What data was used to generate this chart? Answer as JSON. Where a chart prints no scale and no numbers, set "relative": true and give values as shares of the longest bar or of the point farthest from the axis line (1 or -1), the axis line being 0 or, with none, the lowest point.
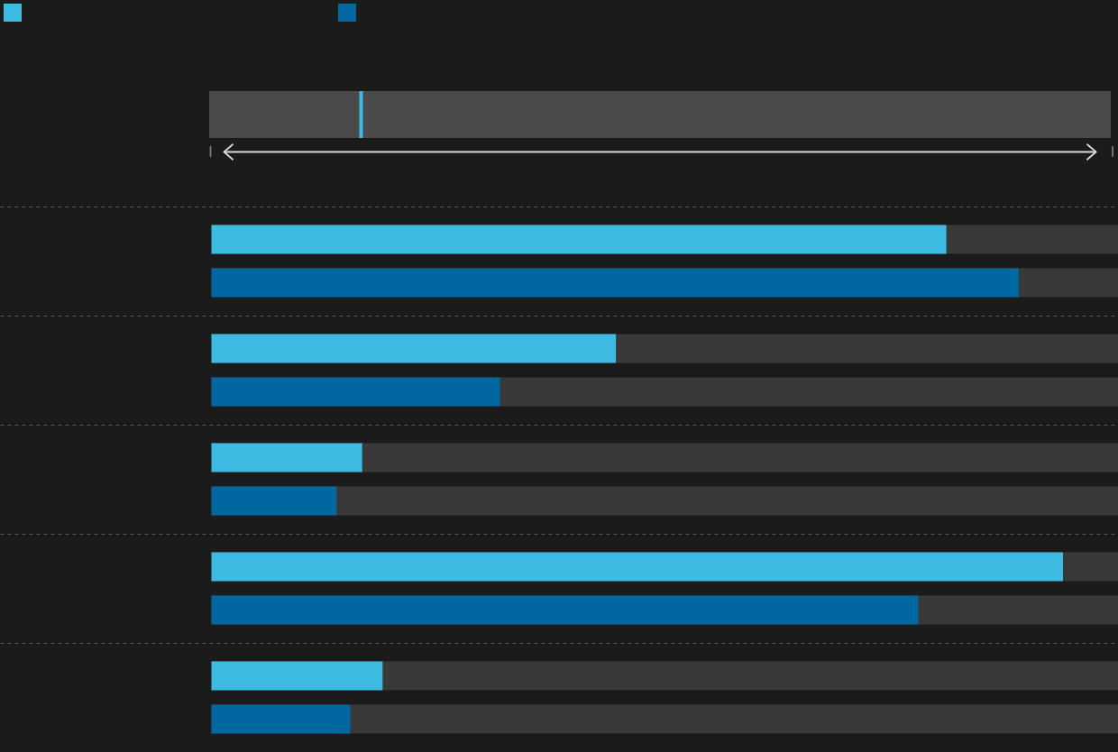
{
  "chart_data": {
    "type": "bar",
    "orientation": "horizontal",
    "relative": true,
    "categories": [
      null,
      null,
      null,
      null,
      null
    ],
    "series": [
      {
        "color": "#3dbbe3",
        "values": [
          0.863,
          0.475,
          0.177,
          1,
          0.201
        ]
      },
      {
        "color": "#0067a0",
        "values": [
          0.948,
          0.339,
          0.147,
          0.83,
          0.163
        ]
      }
    ],
    "grid": "y"
  }
}
